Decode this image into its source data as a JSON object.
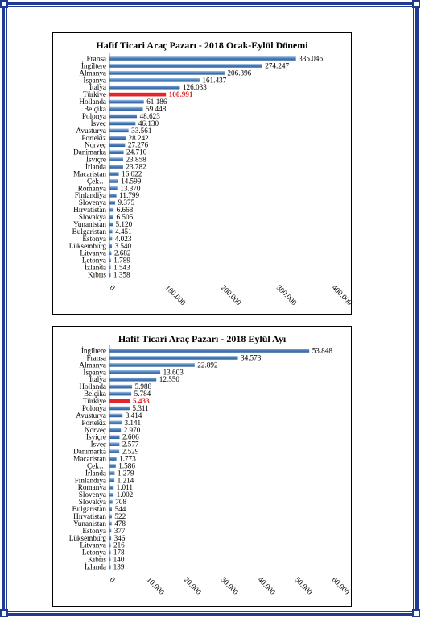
{
  "colors": {
    "frame": "#1f3a93",
    "bar": "#4f81bd",
    "bar_highlight": "#e4262a",
    "label_highlight": "#e4262a"
  },
  "chart_data": [
    {
      "type": "bar",
      "orientation": "horizontal",
      "title": "Hafif Ticari Araç Pazarı - 2018 Ocak-Eylül Dönemi",
      "highlight": "Türkiye",
      "xlim": [
        0,
        400000
      ],
      "xticks": [
        "0",
        "100.000",
        "200.000",
        "300.000",
        "400.000"
      ],
      "xtick_values": [
        0,
        100000,
        200000,
        300000,
        400000
      ],
      "categories": [
        "Fransa",
        "İngiltere",
        "Almanya",
        "İspanya",
        "İtalya",
        "Türkiye",
        "Hollanda",
        "Belçika",
        "Polonya",
        "İsveç",
        "Avusturya",
        "Portekiz",
        "Norveç",
        "Danimarka",
        "İsviçre",
        "İrlanda",
        "Macaristan",
        "Çek…",
        "Romanya",
        "Finlandiya",
        "Slovenya",
        "Hırvatistan",
        "Slovakya",
        "Yunanistan",
        "Bulgaristan",
        "Estonya",
        "Lüksemburg",
        "Litvanya",
        "Letonya",
        "İzlanda",
        "Kıbrıs"
      ],
      "values": [
        335046,
        274247,
        206396,
        161437,
        126033,
        100991,
        61186,
        59448,
        48623,
        46130,
        33561,
        28242,
        27276,
        24710,
        23858,
        23782,
        16022,
        14599,
        13370,
        11799,
        9375,
        6668,
        6505,
        5120,
        4451,
        4023,
        3540,
        2682,
        1789,
        1543,
        1358
      ],
      "value_labels": [
        "335.046",
        "274.247",
        "206.396",
        "161.437",
        "126.033",
        "100.991",
        "61.186",
        "59.448",
        "48.623",
        "46.130",
        "33.561",
        "28.242",
        "27.276",
        "24.710",
        "23.858",
        "23.782",
        "16.022",
        "14.599",
        "13.370",
        "11.799",
        "9.375",
        "6.668",
        "6.505",
        "5.120",
        "4.451",
        "4.023",
        "3.540",
        "2.682",
        "1.789",
        "1.543",
        "1.358"
      ]
    },
    {
      "type": "bar",
      "orientation": "horizontal",
      "title": "Hafif Ticari Araç Pazarı - 2018 Eylül Ayı",
      "highlight": "Türkiye",
      "xlim": [
        0,
        60000
      ],
      "xticks": [
        "0",
        "10.000",
        "20.000",
        "30.000",
        "40.000",
        "50.000",
        "60.000"
      ],
      "xtick_values": [
        0,
        10000,
        20000,
        30000,
        40000,
        50000,
        60000
      ],
      "categories": [
        "İngiltere",
        "Fransa",
        "Almanya",
        "İspanya",
        "İtalya",
        "Hollanda",
        "Belçika",
        "Türkiye",
        "Polonya",
        "Avusturya",
        "Portekiz",
        "Norveç",
        "İsviçre",
        "İsveç",
        "Danimarka",
        "Macaristan",
        "Çek…",
        "İrlanda",
        "Finlandiya",
        "Romanya",
        "Slovenya",
        "Slovakya",
        "Bulgaristan",
        "Hırvatistan",
        "Yunanistan",
        "Estonya",
        "Lüksemburg",
        "Litvanya",
        "Letonya",
        "Kıbrıs",
        "İzlanda"
      ],
      "values": [
        53848,
        34573,
        22892,
        13603,
        12550,
        5988,
        5784,
        5433,
        5311,
        3414,
        3141,
        2970,
        2606,
        2577,
        2529,
        1773,
        1586,
        1279,
        1214,
        1011,
        1002,
        708,
        544,
        522,
        478,
        377,
        346,
        216,
        178,
        140,
        139
      ],
      "value_labels": [
        "53.848",
        "34.573",
        "22.892",
        "13.603",
        "12.550",
        "5.988",
        "5.784",
        "5.433",
        "5.311",
        "3.414",
        "3.141",
        "2.970",
        "2.606",
        "2.577",
        "2.529",
        "1.773",
        "1.586",
        "1.279",
        "1.214",
        "1.011",
        "1.002",
        "708",
        "544",
        "522",
        "478",
        "377",
        "346",
        "216",
        "178",
        "140",
        "139"
      ]
    }
  ]
}
